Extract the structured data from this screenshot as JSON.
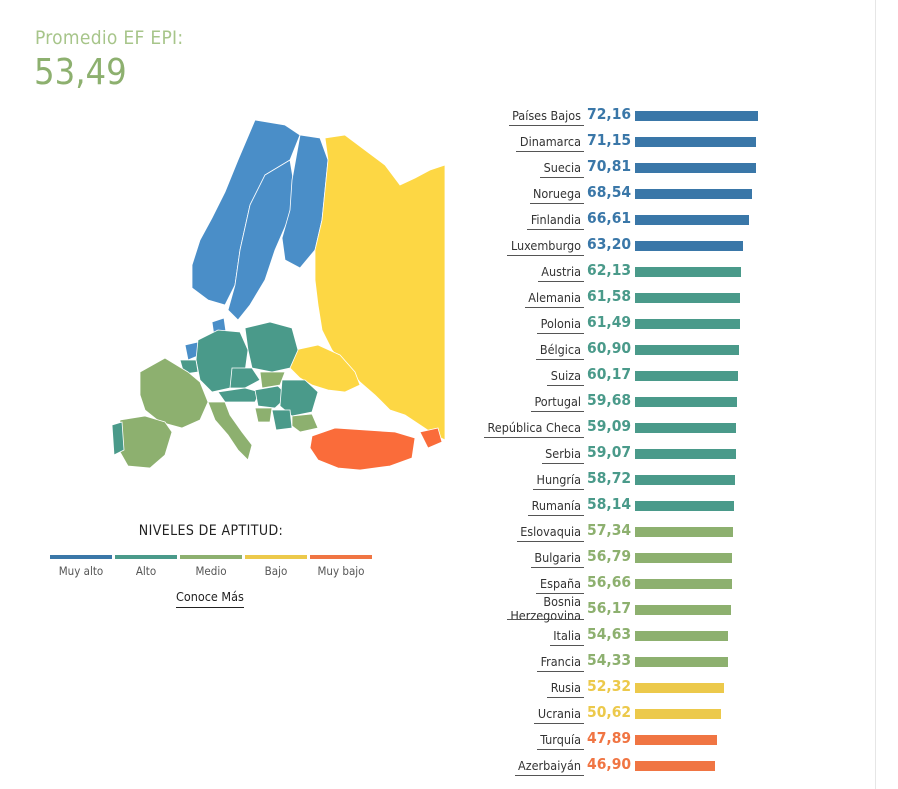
{
  "header": {
    "label": "Promedio EF EPI:",
    "value": "53,49"
  },
  "legend": {
    "title": "NIVELES DE APTITUD:",
    "levels": [
      {
        "name": "Muy alto",
        "color": "#3a77a8"
      },
      {
        "name": "Alto",
        "color": "#4a9a8a"
      },
      {
        "name": "Medio",
        "color": "#8db06f"
      },
      {
        "name": "Bajo",
        "color": "#ecc94b"
      },
      {
        "name": "Muy bajo",
        "color": "#f07543"
      }
    ],
    "link_label": "Conoce Más"
  },
  "map_colors": {
    "muy_alto": "#4a8ec8",
    "alto": "#4a9a8a",
    "medio": "#8db06f",
    "bajo": "#fdd744",
    "muy_bajo": "#fa6c3a"
  },
  "chart_data": {
    "type": "bar",
    "orientation": "horizontal",
    "categories": [
      "Países Bajos",
      "Dinamarca",
      "Suecia",
      "Noruega",
      "Finlandia",
      "Luxemburgo",
      "Austria",
      "Alemania",
      "Polonia",
      "Bélgica",
      "Suiza",
      "Portugal",
      "República Checa",
      "Serbia",
      "Hungría",
      "Rumanía",
      "Eslovaquia",
      "Bulgaria",
      "España",
      "Bosnia Herzegovina",
      "Italia",
      "Francia",
      "Rusia",
      "Ucrania",
      "Turquía",
      "Azerbaiyán"
    ],
    "values": [
      72.16,
      71.15,
      70.81,
      68.54,
      66.61,
      63.2,
      62.13,
      61.58,
      61.49,
      60.9,
      60.17,
      59.68,
      59.09,
      59.07,
      58.72,
      58.14,
      57.34,
      56.79,
      56.66,
      56.17,
      54.63,
      54.33,
      52.32,
      50.62,
      47.89,
      46.9
    ],
    "value_labels": [
      "72,16",
      "71,15",
      "70,81",
      "68,54",
      "66,61",
      "63,20",
      "62,13",
      "61,58",
      "61,49",
      "60,90",
      "60,17",
      "59,68",
      "59,09",
      "59,07",
      "58,72",
      "58,14",
      "57,34",
      "56,79",
      "56,66",
      "56,17",
      "54,63",
      "54,33",
      "52,32",
      "50,62",
      "47,89",
      "46,90"
    ],
    "levels": [
      "Muy alto",
      "Muy alto",
      "Muy alto",
      "Muy alto",
      "Muy alto",
      "Muy alto",
      "Alto",
      "Alto",
      "Alto",
      "Alto",
      "Alto",
      "Alto",
      "Alto",
      "Alto",
      "Alto",
      "Alto",
      "Medio",
      "Medio",
      "Medio",
      "Medio",
      "Medio",
      "Medio",
      "Bajo",
      "Bajo",
      "Muy bajo",
      "Muy bajo"
    ],
    "level_colors": {
      "Muy alto": "#3a77a8",
      "Alto": "#4a9a8a",
      "Medio": "#8db06f",
      "Bajo": "#ecc94b",
      "Muy bajo": "#f07543"
    }
  }
}
